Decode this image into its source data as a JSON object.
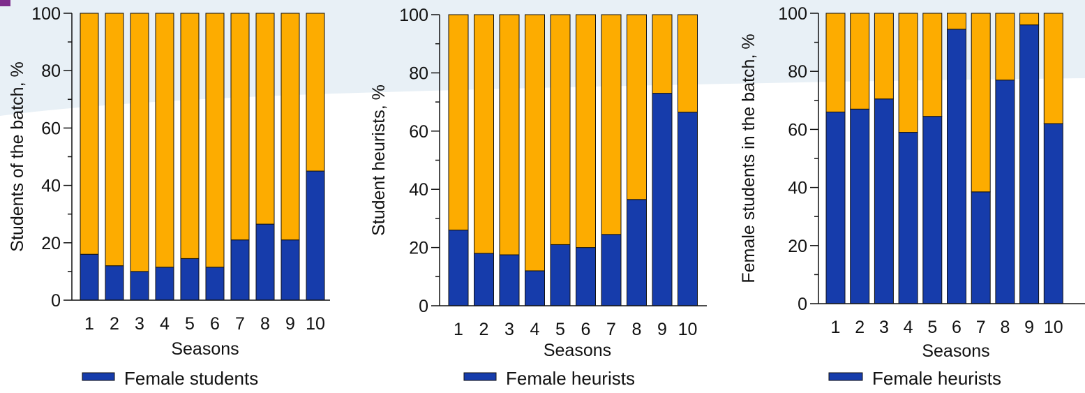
{
  "colors": {
    "female": "#163cab",
    "rest": "#fdac00",
    "background_band": "#e8f0f6",
    "accent_mark": "#7e2c8c"
  },
  "chart_data": [
    {
      "type": "bar",
      "stacked": true,
      "categories": [
        "1",
        "2",
        "3",
        "4",
        "5",
        "6",
        "7",
        "8",
        "9",
        "10"
      ],
      "series": [
        {
          "name": "Female students",
          "color": "#163cab",
          "values": [
            16,
            12,
            10,
            11.5,
            14.5,
            11.5,
            21,
            26.5,
            21,
            45
          ]
        },
        {
          "color": "#fdac00",
          "values": [
            84,
            88,
            90,
            88.5,
            85.5,
            88.5,
            79,
            73.5,
            79,
            55
          ]
        }
      ],
      "title": "",
      "xlabel": "Seasons",
      "ylabel": "Students of the batch, %",
      "ylim": [
        0,
        100
      ],
      "yticks": [
        "0",
        "20",
        "40",
        "60",
        "80",
        "100"
      ],
      "legend": [
        "Female students"
      ],
      "legend_position": "bottom"
    },
    {
      "type": "bar",
      "stacked": true,
      "categories": [
        "1",
        "2",
        "3",
        "4",
        "5",
        "6",
        "7",
        "8",
        "9",
        "10"
      ],
      "series": [
        {
          "name": "Female heurists",
          "color": "#163cab",
          "values": [
            26,
            18,
            17.5,
            12,
            21,
            20,
            24.5,
            36.5,
            73,
            66.5
          ]
        },
        {
          "color": "#fdac00",
          "values": [
            74,
            82,
            82.5,
            88,
            79,
            80,
            75.5,
            63.5,
            27,
            33.5
          ]
        }
      ],
      "title": "",
      "xlabel": "Seasons",
      "ylabel": "Student heurists, %",
      "ylim": [
        0,
        100
      ],
      "yticks": [
        "0",
        "20",
        "40",
        "60",
        "80",
        "100"
      ],
      "legend": [
        "Female heurists"
      ],
      "legend_position": "bottom"
    },
    {
      "type": "bar",
      "stacked": true,
      "categories": [
        "1",
        "2",
        "3",
        "4",
        "5",
        "6",
        "7",
        "8",
        "9",
        "10"
      ],
      "series": [
        {
          "name": "Female heurists",
          "color": "#163cab",
          "values": [
            66,
            67,
            70.5,
            59,
            64.5,
            94.5,
            38.5,
            77,
            96,
            62
          ]
        },
        {
          "color": "#fdac00",
          "values": [
            34,
            33,
            29.5,
            41,
            35.5,
            5.5,
            61.5,
            23,
            4,
            38
          ]
        }
      ],
      "title": "",
      "xlabel": "Seasons",
      "ylabel": "Female students in the batch, %",
      "ylim": [
        0,
        100
      ],
      "yticks": [
        "0",
        "20",
        "40",
        "60",
        "80",
        "100"
      ],
      "legend": [
        "Female heurists"
      ],
      "legend_position": "bottom"
    }
  ]
}
